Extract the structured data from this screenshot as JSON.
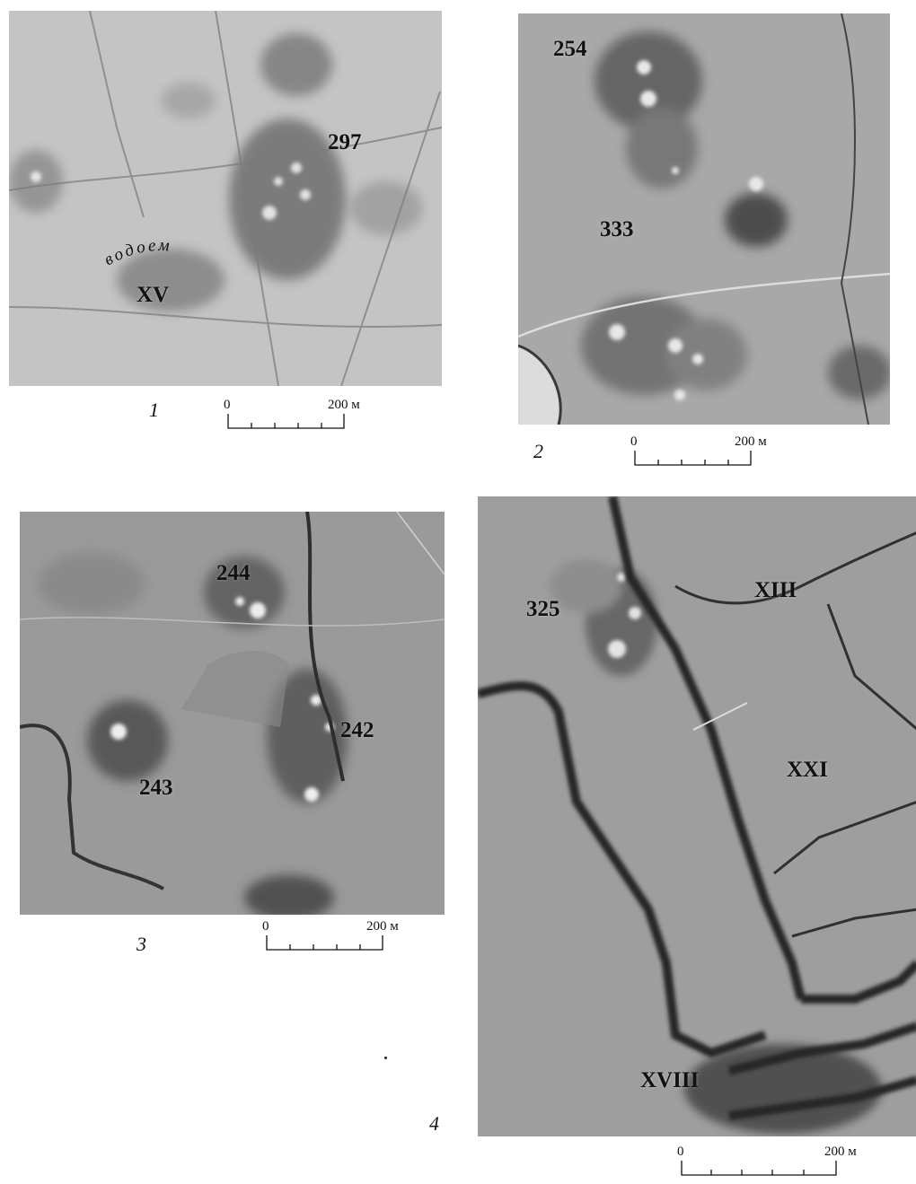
{
  "panels": [
    {
      "number": "1",
      "labels": [
        "297",
        "XV"
      ],
      "water_label": "водоем",
      "scale": {
        "zero": "0",
        "max": "200 м"
      }
    },
    {
      "number": "2",
      "labels": [
        "254",
        "333"
      ],
      "scale": {
        "zero": "0",
        "max": "200 м"
      }
    },
    {
      "number": "3",
      "labels": [
        "244",
        "242",
        "243"
      ],
      "scale": {
        "zero": "0",
        "max": "200 м"
      }
    },
    {
      "number": "4",
      "labels": [
        "325",
        "XIII",
        "XXI",
        "XVIII"
      ],
      "scale": {
        "zero": "0",
        "max": "200 м"
      }
    }
  ],
  "colors": {
    "photo_light": "#b8b8b8",
    "photo_mid": "#8f8f8f",
    "photo_dark": "#3a3a3a",
    "background": "#ffffff"
  }
}
